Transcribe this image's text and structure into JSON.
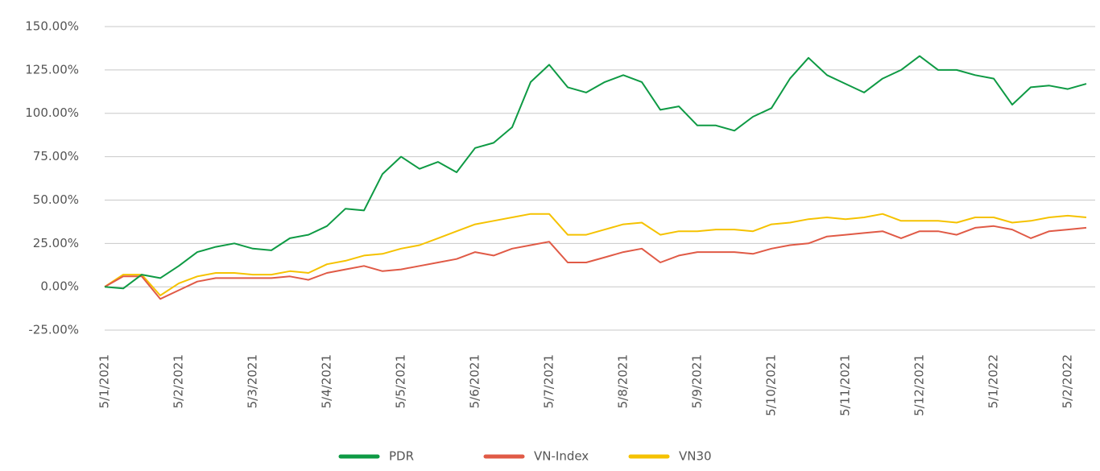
{
  "chart_data": {
    "type": "line",
    "categories": [
      "5/1/2021",
      null,
      null,
      null,
      "5/2/2021",
      null,
      null,
      null,
      "5/3/2021",
      null,
      null,
      null,
      "5/4/2021",
      null,
      null,
      null,
      "5/5/2021",
      null,
      null,
      null,
      "5/6/2021",
      null,
      null,
      null,
      "5/7/2021",
      null,
      null,
      null,
      "5/8/2021",
      null,
      null,
      null,
      "5/9/2021",
      null,
      null,
      null,
      "5/10/2021",
      null,
      null,
      null,
      "5/11/2021",
      null,
      null,
      null,
      "5/12/2021",
      null,
      null,
      null,
      "5/1/2022",
      null,
      null,
      null,
      "5/2/2022",
      null
    ],
    "series": [
      {
        "name": "PDR",
        "color": "#0e9a44",
        "values": [
          0,
          -1,
          7,
          5,
          12,
          20,
          23,
          25,
          22,
          21,
          28,
          30,
          35,
          45,
          44,
          65,
          75,
          68,
          72,
          66,
          80,
          83,
          92,
          118,
          128,
          115,
          112,
          118,
          122,
          118,
          102,
          104,
          93,
          93,
          90,
          98,
          103,
          120,
          132,
          122,
          117,
          112,
          120,
          125,
          133,
          125,
          125,
          122,
          120,
          105,
          115,
          116,
          114,
          117
        ]
      },
      {
        "name": "VN-Index",
        "color": "#e05a46",
        "values": [
          0,
          6,
          6,
          -7,
          -2,
          3,
          5,
          5,
          5,
          5,
          6,
          4,
          8,
          10,
          12,
          9,
          10,
          12,
          14,
          16,
          20,
          18,
          22,
          24,
          26,
          14,
          14,
          17,
          20,
          22,
          14,
          18,
          20,
          20,
          20,
          19,
          22,
          24,
          25,
          29,
          30,
          31,
          32,
          28,
          32,
          32,
          30,
          34,
          35,
          33,
          28,
          32,
          33,
          34
        ]
      },
      {
        "name": "VN30",
        "color": "#f5c200",
        "values": [
          0,
          7,
          7,
          -5,
          2,
          6,
          8,
          8,
          7,
          7,
          9,
          8,
          13,
          15,
          18,
          19,
          22,
          24,
          28,
          32,
          36,
          38,
          40,
          42,
          42,
          30,
          30,
          33,
          36,
          37,
          30,
          32,
          32,
          33,
          33,
          32,
          36,
          37,
          39,
          40,
          39,
          40,
          42,
          38,
          38,
          38,
          37,
          40,
          40,
          37,
          38,
          40,
          41,
          40
        ]
      }
    ],
    "ylim": [
      -35,
      150
    ],
    "yticks": [
      {
        "value": -25,
        "label": "-25.00%"
      },
      {
        "value": 0,
        "label": "0.00%"
      },
      {
        "value": 25,
        "label": "25.00%"
      },
      {
        "value": 50,
        "label": "50.00%"
      },
      {
        "value": 75,
        "label": "75.00%"
      },
      {
        "value": 100,
        "label": "100.00%"
      },
      {
        "value": 125,
        "label": "125.00%"
      },
      {
        "value": 150,
        "label": "150.00%"
      }
    ],
    "grid": true,
    "legend": "bottom"
  }
}
